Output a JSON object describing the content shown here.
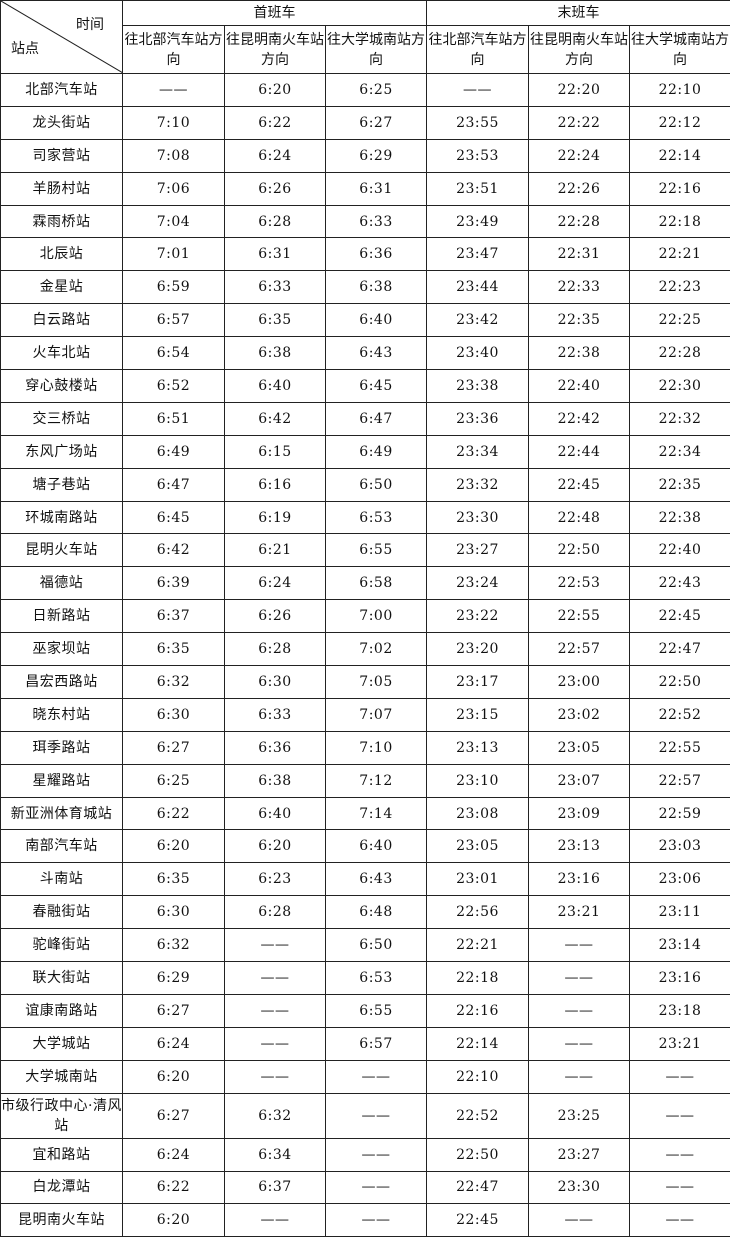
{
  "header": {
    "corner_time": "时间",
    "corner_station": "站点",
    "first_train": "首班车",
    "last_train": "末班车",
    "directions": [
      "往北部汽车站方向",
      "往昆明南火车站方向",
      "往大学城南站方向",
      "往北部汽车站方向",
      "往昆明南火车站方向",
      "往大学城南站方向"
    ]
  },
  "rows": [
    {
      "station": "北部汽车站",
      "times": [
        "——",
        "6:20",
        "6:25",
        "——",
        "22:20",
        "22:10"
      ]
    },
    {
      "station": "龙头街站",
      "times": [
        "7:10",
        "6:22",
        "6:27",
        "23:55",
        "22:22",
        "22:12"
      ]
    },
    {
      "station": "司家营站",
      "times": [
        "7:08",
        "6:24",
        "6:29",
        "23:53",
        "22:24",
        "22:14"
      ]
    },
    {
      "station": "羊肠村站",
      "times": [
        "7:06",
        "6:26",
        "6:31",
        "23:51",
        "22:26",
        "22:16"
      ]
    },
    {
      "station": "霖雨桥站",
      "times": [
        "7:04",
        "6:28",
        "6:33",
        "23:49",
        "22:28",
        "22:18"
      ]
    },
    {
      "station": "北辰站",
      "times": [
        "7:01",
        "6:31",
        "6:36",
        "23:47",
        "22:31",
        "22:21"
      ]
    },
    {
      "station": "金星站",
      "times": [
        "6:59",
        "6:33",
        "6:38",
        "23:44",
        "22:33",
        "22:23"
      ]
    },
    {
      "station": "白云路站",
      "times": [
        "6:57",
        "6:35",
        "6:40",
        "23:42",
        "22:35",
        "22:25"
      ]
    },
    {
      "station": "火车北站",
      "times": [
        "6:54",
        "6:38",
        "6:43",
        "23:40",
        "22:38",
        "22:28"
      ]
    },
    {
      "station": "穿心鼓楼站",
      "times": [
        "6:52",
        "6:40",
        "6:45",
        "23:38",
        "22:40",
        "22:30"
      ]
    },
    {
      "station": "交三桥站",
      "times": [
        "6:51",
        "6:42",
        "6:47",
        "23:36",
        "22:42",
        "22:32"
      ]
    },
    {
      "station": "东风广场站",
      "times": [
        "6:49",
        "6:15",
        "6:49",
        "23:34",
        "22:44",
        "22:34"
      ]
    },
    {
      "station": "塘子巷站",
      "times": [
        "6:47",
        "6:16",
        "6:50",
        "23:32",
        "22:45",
        "22:35"
      ]
    },
    {
      "station": "环城南路站",
      "times": [
        "6:45",
        "6:19",
        "6:53",
        "23:30",
        "22:48",
        "22:38"
      ]
    },
    {
      "station": "昆明火车站",
      "times": [
        "6:42",
        "6:21",
        "6:55",
        "23:27",
        "22:50",
        "22:40"
      ]
    },
    {
      "station": "福德站",
      "times": [
        "6:39",
        "6:24",
        "6:58",
        "23:24",
        "22:53",
        "22:43"
      ]
    },
    {
      "station": "日新路站",
      "times": [
        "6:37",
        "6:26",
        "7:00",
        "23:22",
        "22:55",
        "22:45"
      ]
    },
    {
      "station": "巫家坝站",
      "times": [
        "6:35",
        "6:28",
        "7:02",
        "23:20",
        "22:57",
        "22:47"
      ]
    },
    {
      "station": "昌宏西路站",
      "times": [
        "6:32",
        "6:30",
        "7:05",
        "23:17",
        "23:00",
        "22:50"
      ]
    },
    {
      "station": "晓东村站",
      "times": [
        "6:30",
        "6:33",
        "7:07",
        "23:15",
        "23:02",
        "22:52"
      ]
    },
    {
      "station": "珥季路站",
      "times": [
        "6:27",
        "6:36",
        "7:10",
        "23:13",
        "23:05",
        "22:55"
      ]
    },
    {
      "station": "星耀路站",
      "times": [
        "6:25",
        "6:38",
        "7:12",
        "23:10",
        "23:07",
        "22:57"
      ]
    },
    {
      "station": "新亚洲体育城站",
      "times": [
        "6:22",
        "6:40",
        "7:14",
        "23:08",
        "23:09",
        "22:59"
      ]
    },
    {
      "station": "南部汽车站",
      "times": [
        "6:20",
        "6:20",
        "6:40",
        "23:05",
        "23:13",
        "23:03"
      ]
    },
    {
      "station": "斗南站",
      "times": [
        "6:35",
        "6:23",
        "6:43",
        "23:01",
        "23:16",
        "23:06"
      ]
    },
    {
      "station": "春融街站",
      "times": [
        "6:30",
        "6:28",
        "6:48",
        "22:56",
        "23:21",
        "23:11"
      ]
    },
    {
      "station": "驼峰街站",
      "times": [
        "6:32",
        "——",
        "6:50",
        "22:21",
        "——",
        "23:14"
      ]
    },
    {
      "station": "联大街站",
      "times": [
        "6:29",
        "——",
        "6:53",
        "22:18",
        "——",
        "23:16"
      ]
    },
    {
      "station": "谊康南路站",
      "times": [
        "6:27",
        "——",
        "6:55",
        "22:16",
        "——",
        "23:18"
      ]
    },
    {
      "station": "大学城站",
      "times": [
        "6:24",
        "——",
        "6:57",
        "22:14",
        "——",
        "23:21"
      ]
    },
    {
      "station": "大学城南站",
      "times": [
        "6:20",
        "——",
        "——",
        "22:10",
        "——",
        "——"
      ]
    },
    {
      "station": "市级行政中心·清风站",
      "times": [
        "6:27",
        "6:32",
        "——",
        "22:52",
        "23:25",
        "——"
      ]
    },
    {
      "station": "宜和路站",
      "times": [
        "6:24",
        "6:34",
        "——",
        "22:50",
        "23:27",
        "——"
      ]
    },
    {
      "station": "白龙潭站",
      "times": [
        "6:22",
        "6:37",
        "——",
        "22:47",
        "23:30",
        "——"
      ]
    },
    {
      "station": "昆明南火车站",
      "times": [
        "6:20",
        "——",
        "——",
        "22:45",
        "——",
        "——"
      ]
    }
  ]
}
